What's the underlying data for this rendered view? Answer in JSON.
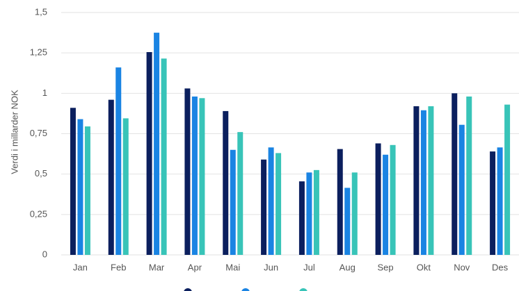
{
  "chart_data": {
    "type": "bar",
    "y_label": "Verdi i millarder NOK",
    "categories": [
      "Jan",
      "Feb",
      "Mar",
      "Apr",
      "Mai",
      "Jun",
      "Jul",
      "Aug",
      "Sep",
      "Okt",
      "Nov",
      "Des"
    ],
    "series": [
      {
        "color": "#0b1f5e",
        "values": [
          0.91,
          0.96,
          1.255,
          1.03,
          0.89,
          0.59,
          0.455,
          0.655,
          0.69,
          0.92,
          1.0,
          0.64
        ]
      },
      {
        "color": "#1a84e3",
        "values": [
          0.84,
          1.16,
          1.375,
          0.98,
          0.65,
          0.665,
          0.51,
          0.415,
          0.62,
          0.895,
          0.805,
          0.665
        ]
      },
      {
        "color": "#38c4b8",
        "values": [
          0.795,
          0.845,
          1.215,
          0.97,
          0.76,
          0.63,
          0.525,
          0.51,
          0.68,
          0.92,
          0.98,
          0.93
        ]
      }
    ],
    "ylim": [
      0,
      1.5
    ],
    "yticks": [
      0,
      {
        "value": 0.25,
        "label": "0,25"
      },
      {
        "value": 0.5,
        "label": "0,5"
      },
      {
        "value": 0.75,
        "label": "0,75"
      },
      1,
      {
        "value": 1.25,
        "label": "1,25"
      },
      {
        "value": 1.5,
        "label": "1,5"
      }
    ],
    "grid": true
  }
}
